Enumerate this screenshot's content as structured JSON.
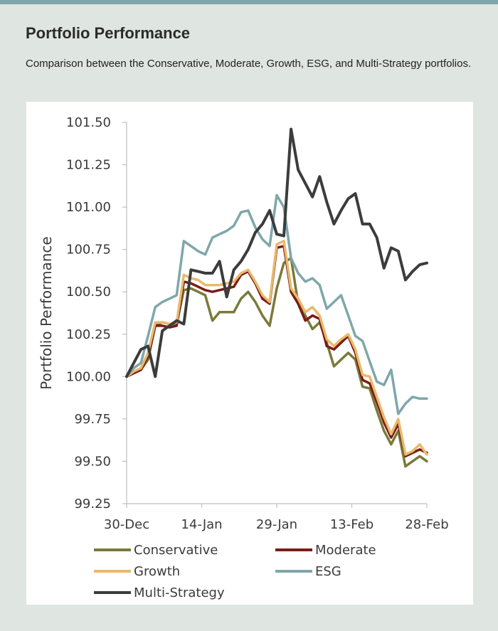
{
  "header": {
    "title": "Portfolio Performance",
    "subtitle": "Comparison between the Conservative, Moderate, Growth, ESG, and Multi-Strategy portfolios."
  },
  "chart_data": {
    "type": "line",
    "title": "",
    "xlabel": "",
    "ylabel": "Portfolio Performance",
    "ylim": [
      99.25,
      101.5
    ],
    "yticks": [
      "99.25",
      "99.50",
      "99.75",
      "100.00",
      "100.25",
      "100.50",
      "100.75",
      "101.00",
      "101.25",
      "101.50"
    ],
    "xticks": [
      "30-Dec",
      "14-Jan",
      "29-Jan",
      "13-Feb",
      "28-Feb"
    ],
    "grid": false,
    "legend_position": "bottom",
    "series": [
      {
        "name": "Conservative",
        "color": "#7a7a3a",
        "values": [
          100.0,
          100.02,
          100.04,
          100.1,
          100.3,
          100.32,
          100.31,
          100.31,
          100.51,
          100.52,
          100.5,
          100.48,
          100.33,
          100.38,
          100.38,
          100.38,
          100.46,
          100.5,
          100.44,
          100.36,
          100.3,
          100.52,
          100.67,
          100.7,
          100.43,
          100.36,
          100.28,
          100.32,
          100.2,
          100.06,
          100.1,
          100.14,
          100.1,
          99.94,
          99.93,
          99.8,
          99.68,
          99.6,
          99.68,
          99.47,
          99.5,
          99.53,
          99.5
        ]
      },
      {
        "name": "Moderate",
        "color": "#7a1c14",
        "values": [
          100.0,
          100.02,
          100.04,
          100.12,
          100.3,
          100.3,
          100.29,
          100.3,
          100.56,
          100.55,
          100.53,
          100.51,
          100.5,
          100.51,
          100.52,
          100.53,
          100.6,
          100.62,
          100.55,
          100.46,
          100.43,
          100.76,
          100.77,
          100.5,
          100.43,
          100.33,
          100.36,
          100.34,
          100.18,
          100.16,
          100.2,
          100.24,
          100.14,
          99.98,
          99.96,
          99.85,
          99.73,
          99.64,
          99.72,
          99.53,
          99.55,
          99.57,
          99.55
        ]
      },
      {
        "name": "Growth",
        "color": "#e9b96e",
        "values": [
          100.0,
          100.03,
          100.05,
          100.14,
          100.32,
          100.32,
          100.31,
          100.32,
          100.6,
          100.58,
          100.57,
          100.54,
          100.54,
          100.54,
          100.55,
          100.56,
          100.61,
          100.63,
          100.56,
          100.48,
          100.44,
          100.78,
          100.8,
          100.52,
          100.46,
          100.38,
          100.41,
          100.36,
          100.22,
          100.18,
          100.22,
          100.25,
          100.16,
          100.01,
          100.0,
          99.88,
          99.76,
          99.66,
          99.75,
          99.54,
          99.56,
          99.6,
          99.54
        ]
      },
      {
        "name": "ESG",
        "color": "#7fa7ab",
        "values": [
          100.0,
          100.05,
          100.08,
          100.24,
          100.41,
          100.44,
          100.46,
          100.48,
          100.8,
          100.77,
          100.74,
          100.72,
          100.82,
          100.84,
          100.86,
          100.89,
          100.97,
          100.98,
          100.88,
          100.81,
          100.77,
          101.07,
          101.0,
          100.7,
          100.61,
          100.56,
          100.58,
          100.54,
          100.4,
          100.44,
          100.48,
          100.36,
          100.24,
          100.21,
          100.09,
          99.97,
          99.95,
          100.04,
          99.78,
          99.84,
          99.88,
          99.87,
          99.87
        ]
      },
      {
        "name": "Multi-Strategy",
        "color": "#3c3c3c",
        "values": [
          100.0,
          100.08,
          100.16,
          100.18,
          100.0,
          100.27,
          100.3,
          100.33,
          100.31,
          100.63,
          100.62,
          100.61,
          100.61,
          100.68,
          100.47,
          100.63,
          100.68,
          100.75,
          100.85,
          100.9,
          100.98,
          100.84,
          100.83,
          101.46,
          101.22,
          101.14,
          101.06,
          101.18,
          101.03,
          100.9,
          100.98,
          101.05,
          101.08,
          100.9,
          100.9,
          100.82,
          100.64,
          100.76,
          100.74,
          100.57,
          100.62,
          100.66,
          100.67
        ]
      }
    ]
  }
}
